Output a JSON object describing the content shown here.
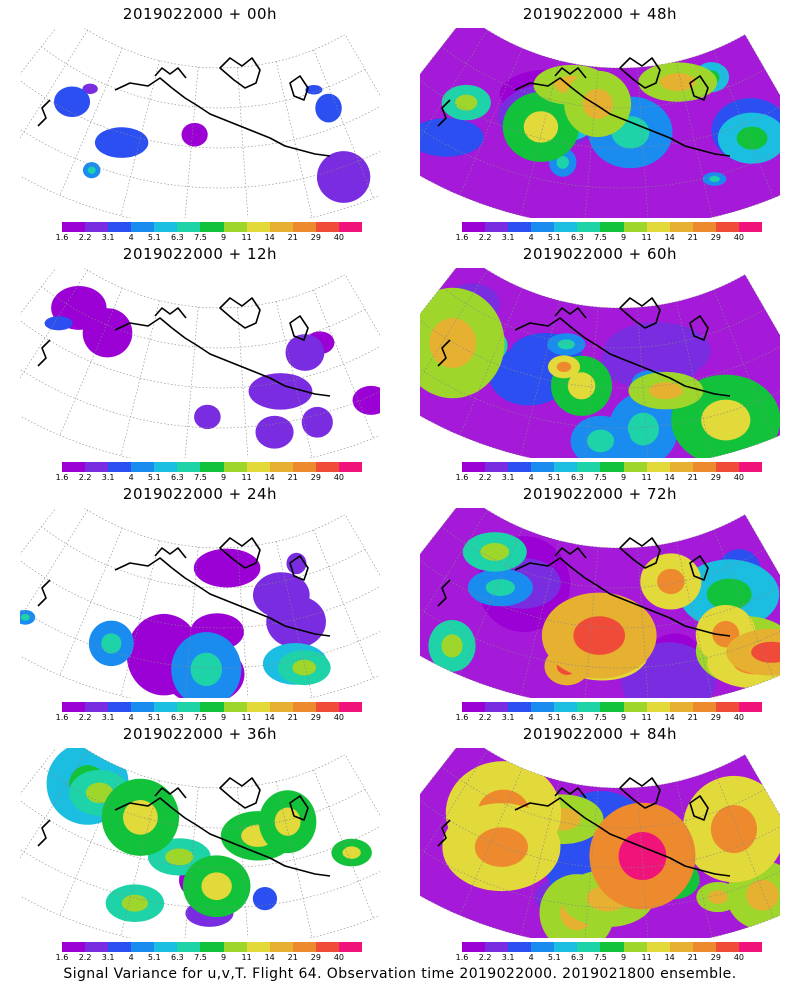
{
  "panels": [
    {
      "title": "2019022000 + 00h",
      "intensity": 0.15
    },
    {
      "title": "2019022000 + 48h",
      "intensity": 0.65
    },
    {
      "title": "2019022000 + 12h",
      "intensity": 0.25
    },
    {
      "title": "2019022000 + 60h",
      "intensity": 0.75
    },
    {
      "title": "2019022000 + 24h",
      "intensity": 0.4
    },
    {
      "title": "2019022000 + 72h",
      "intensity": 0.85
    },
    {
      "title": "2019022000 + 36h",
      "intensity": 0.5
    },
    {
      "title": "2019022000 + 84h",
      "intensity": 0.95
    }
  ],
  "colorbar": {
    "labels": [
      "1.6",
      "2.2",
      "3.1",
      "4",
      "5.1",
      "6.3",
      "7.5",
      "9",
      "11",
      "14",
      "21",
      "29",
      "40"
    ],
    "colors": [
      "#9b00d4",
      "#7a2de0",
      "#2b4ff0",
      "#1a8cf0",
      "#1bbde0",
      "#1ed3a8",
      "#12c23a",
      "#9ed62c",
      "#e2d93a",
      "#e6b030",
      "#ee8a2e",
      "#f04a38",
      "#f0147a"
    ]
  },
  "footer": "Signal Variance for u,v,T. Flight 64. Observation time 2019022000. 2019021800 ensemble."
}
